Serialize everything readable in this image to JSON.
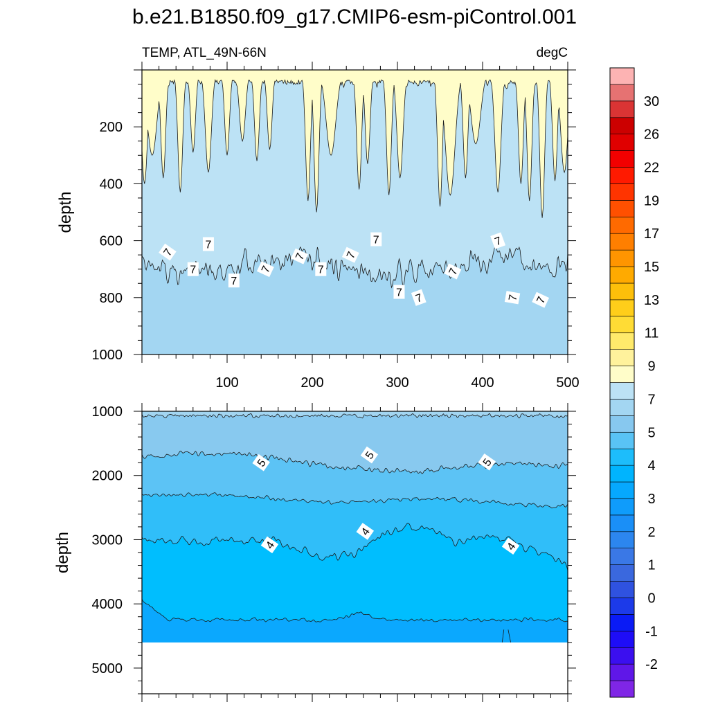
{
  "title": "b.e21.B1850.f09_g17.CMIP6-esm-piControl.001",
  "panel_label_left": "TEMP, ATL_49N-66N",
  "units": "degC",
  "colors": {
    "frame": "#000000",
    "contour_line": "#1a1a1a",
    "label_bg": "#ffffff"
  },
  "chart_data": [
    {
      "type": "heatmap",
      "name": "upper-panel",
      "ylabel": "depth",
      "xlim": [
        0,
        500
      ],
      "ylim": [
        1000,
        0
      ],
      "x_ticks": [
        100,
        200,
        300,
        400,
        500
      ],
      "y_ticks": [
        200,
        400,
        600,
        800,
        1000
      ],
      "x_tick_labels": [
        "100",
        "200",
        "300",
        "400",
        "500"
      ],
      "y_tick_labels": [
        "200",
        "400",
        "600",
        "800",
        "1000"
      ],
      "layers": [
        {
          "from_depth": 0,
          "to_depth": 60,
          "range": "9-11",
          "color": "#FFFDC9"
        },
        {
          "from_depth": 60,
          "to_depth": 700,
          "range": "7-9",
          "color": "#BCE2F5"
        },
        {
          "from_depth": 700,
          "to_depth": 1000,
          "range": "6-7",
          "color": "#A3D6F2"
        }
      ],
      "contour_labels": [
        {
          "text": "7",
          "x": 30,
          "depth": 640,
          "angle": -55
        },
        {
          "text": "7",
          "x": 78,
          "depth": 612,
          "angle": 0
        },
        {
          "text": "7",
          "x": 60,
          "depth": 700,
          "angle": 0
        },
        {
          "text": "7",
          "x": 108,
          "depth": 740,
          "angle": 0
        },
        {
          "text": "7",
          "x": 145,
          "depth": 700,
          "angle": -65
        },
        {
          "text": "7",
          "x": 185,
          "depth": 655,
          "angle": -65
        },
        {
          "text": "7",
          "x": 210,
          "depth": 700,
          "angle": 0
        },
        {
          "text": "7",
          "x": 245,
          "depth": 650,
          "angle": -65
        },
        {
          "text": "7",
          "x": 275,
          "depth": 595,
          "angle": 0
        },
        {
          "text": "7",
          "x": 302,
          "depth": 780,
          "angle": 0
        },
        {
          "text": "7",
          "x": 325,
          "depth": 800,
          "angle": -20
        },
        {
          "text": "7",
          "x": 365,
          "depth": 708,
          "angle": -65
        },
        {
          "text": "7",
          "x": 418,
          "depth": 600,
          "angle": -20
        },
        {
          "text": "7",
          "x": 435,
          "depth": 800,
          "angle": -80
        },
        {
          "text": "7",
          "x": 468,
          "depth": 808,
          "angle": -65
        }
      ]
    },
    {
      "type": "heatmap",
      "name": "lower-panel",
      "ylabel": "depth",
      "xlim": [
        0,
        500
      ],
      "ylim": [
        5400,
        1000
      ],
      "y_ticks": [
        1000,
        2000,
        3000,
        4000,
        5000
      ],
      "y_tick_labels": [
        "1000",
        "2000",
        "3000",
        "4000",
        "5000"
      ],
      "ocean_floor_depth": 4600,
      "layers": [
        {
          "from_depth": 1000,
          "to_depth": 1080,
          "range": "6-7",
          "color": "#A3D6F2"
        },
        {
          "from_depth": 1080,
          "to_depth": 1750,
          "range": "5-6",
          "color": "#88C9EF"
        },
        {
          "from_depth": 1750,
          "to_depth": 2300,
          "range": "4.5-5",
          "color": "#5CC3F5"
        },
        {
          "from_depth": 2300,
          "to_depth": 2950,
          "range": "4-4.5",
          "color": "#30BEF9"
        },
        {
          "from_depth": 2950,
          "to_depth": 4200,
          "range": "3.5-4",
          "color": "#00BEFE"
        },
        {
          "from_depth": 4200,
          "to_depth": 4600,
          "range": "3-3.5",
          "color": "#0BA8FE"
        }
      ],
      "contour_labels": [
        {
          "text": "5",
          "x": 140,
          "depth": 1800,
          "angle": -55
        },
        {
          "text": "5",
          "x": 267,
          "depth": 1680,
          "angle": -55
        },
        {
          "text": "5",
          "x": 405,
          "depth": 1790,
          "angle": -55
        },
        {
          "text": "4",
          "x": 150,
          "depth": 3080,
          "angle": -55
        },
        {
          "text": "4",
          "x": 262,
          "depth": 2870,
          "angle": -55
        },
        {
          "text": "4",
          "x": 433,
          "depth": 3100,
          "angle": -55
        }
      ]
    }
  ],
  "colorbar": {
    "colors": [
      "#7F26E6",
      "#5F17E8",
      "#3B0FEF",
      "#1E0DF7",
      "#0A1BF5",
      "#1C3AE9",
      "#2F52E0",
      "#3A68DE",
      "#3A78E6",
      "#2C86EF",
      "#1A8FF7",
      "#0F9CFB",
      "#06A8FE",
      "#00B4FE",
      "#1DBDFB",
      "#59C3F5",
      "#87C8EF",
      "#A3D6F2",
      "#BCE2F5",
      "#FFFDC9",
      "#FFF29C",
      "#FFEA6B",
      "#FFDC35",
      "#FFCE1A",
      "#FDBF0A",
      "#FFAA00",
      "#FF9500",
      "#FF7F00",
      "#FF6A00",
      "#FF5000",
      "#FF3400",
      "#FF1A00",
      "#F20000",
      "#E00000",
      "#CC0000",
      "#DA3434",
      "#E67272",
      "#FDB3B3"
    ],
    "tick_labels": [
      {
        "text": "-2",
        "index": 1
      },
      {
        "text": "-1",
        "index": 3
      },
      {
        "text": "0",
        "index": 5
      },
      {
        "text": "1",
        "index": 7
      },
      {
        "text": "2",
        "index": 9
      },
      {
        "text": "3",
        "index": 11
      },
      {
        "text": "4",
        "index": 13
      },
      {
        "text": "5",
        "index": 15
      },
      {
        "text": "7",
        "index": 17
      },
      {
        "text": "9",
        "index": 19
      },
      {
        "text": "11",
        "index": 21
      },
      {
        "text": "13",
        "index": 23
      },
      {
        "text": "15",
        "index": 25
      },
      {
        "text": "17",
        "index": 27
      },
      {
        "text": "19",
        "index": 29
      },
      {
        "text": "22",
        "index": 31
      },
      {
        "text": "26",
        "index": 33
      },
      {
        "text": "30",
        "index": 35
      }
    ]
  }
}
